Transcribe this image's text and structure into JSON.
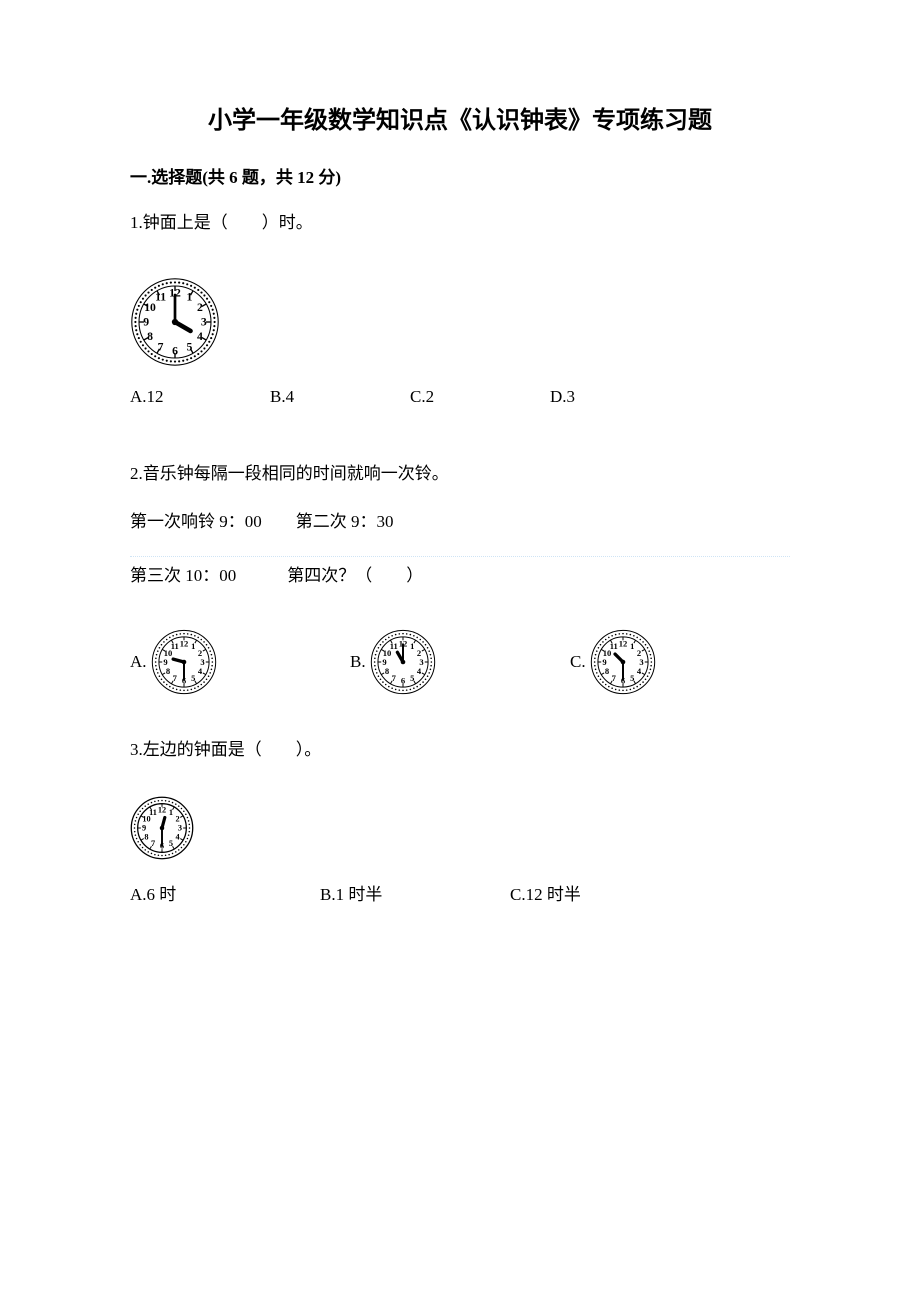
{
  "title": "小学一年级数学知识点《认识钟表》专项练习题",
  "section1": {
    "header": "一.选择题(共 6 题，共 12 分)",
    "q1": {
      "text": "1.钟面上是（　　）时。",
      "clock": {
        "hour": 4,
        "minute": 0,
        "size": 90,
        "style": "fancy"
      },
      "options": {
        "a": "A.12",
        "b": "B.4",
        "c": "C.2",
        "d": "D.3"
      }
    },
    "q2": {
      "text": "2.音乐钟每隔一段相同的时间就响一次铃。",
      "line2": "第一次响铃 9：00　　第二次 9：30",
      "line3": "第三次 10：00　　　第四次？（　　）",
      "opts": [
        {
          "label": "A.",
          "clock": {
            "hour": 9,
            "minute": 30,
            "size": 66,
            "style": "ring"
          }
        },
        {
          "label": "B.",
          "clock": {
            "hour": 11,
            "minute": 0,
            "size": 66,
            "style": "ring"
          }
        },
        {
          "label": "C.",
          "clock": {
            "hour": 10,
            "minute": 30,
            "size": 66,
            "style": "ring"
          }
        }
      ]
    },
    "q3": {
      "text": "3.左边的钟面是（　　）。",
      "clock": {
        "hour": 12,
        "minute": 30,
        "size": 64,
        "style": "bold"
      },
      "options": {
        "a": "A.6 时",
        "b": "B.1 时半",
        "c": "C.12 时半"
      }
    }
  },
  "style": {
    "clock_face_fill": "#ffffff",
    "clock_stroke": "#000000",
    "hand_color": "#000000",
    "text_color": "#000000"
  }
}
